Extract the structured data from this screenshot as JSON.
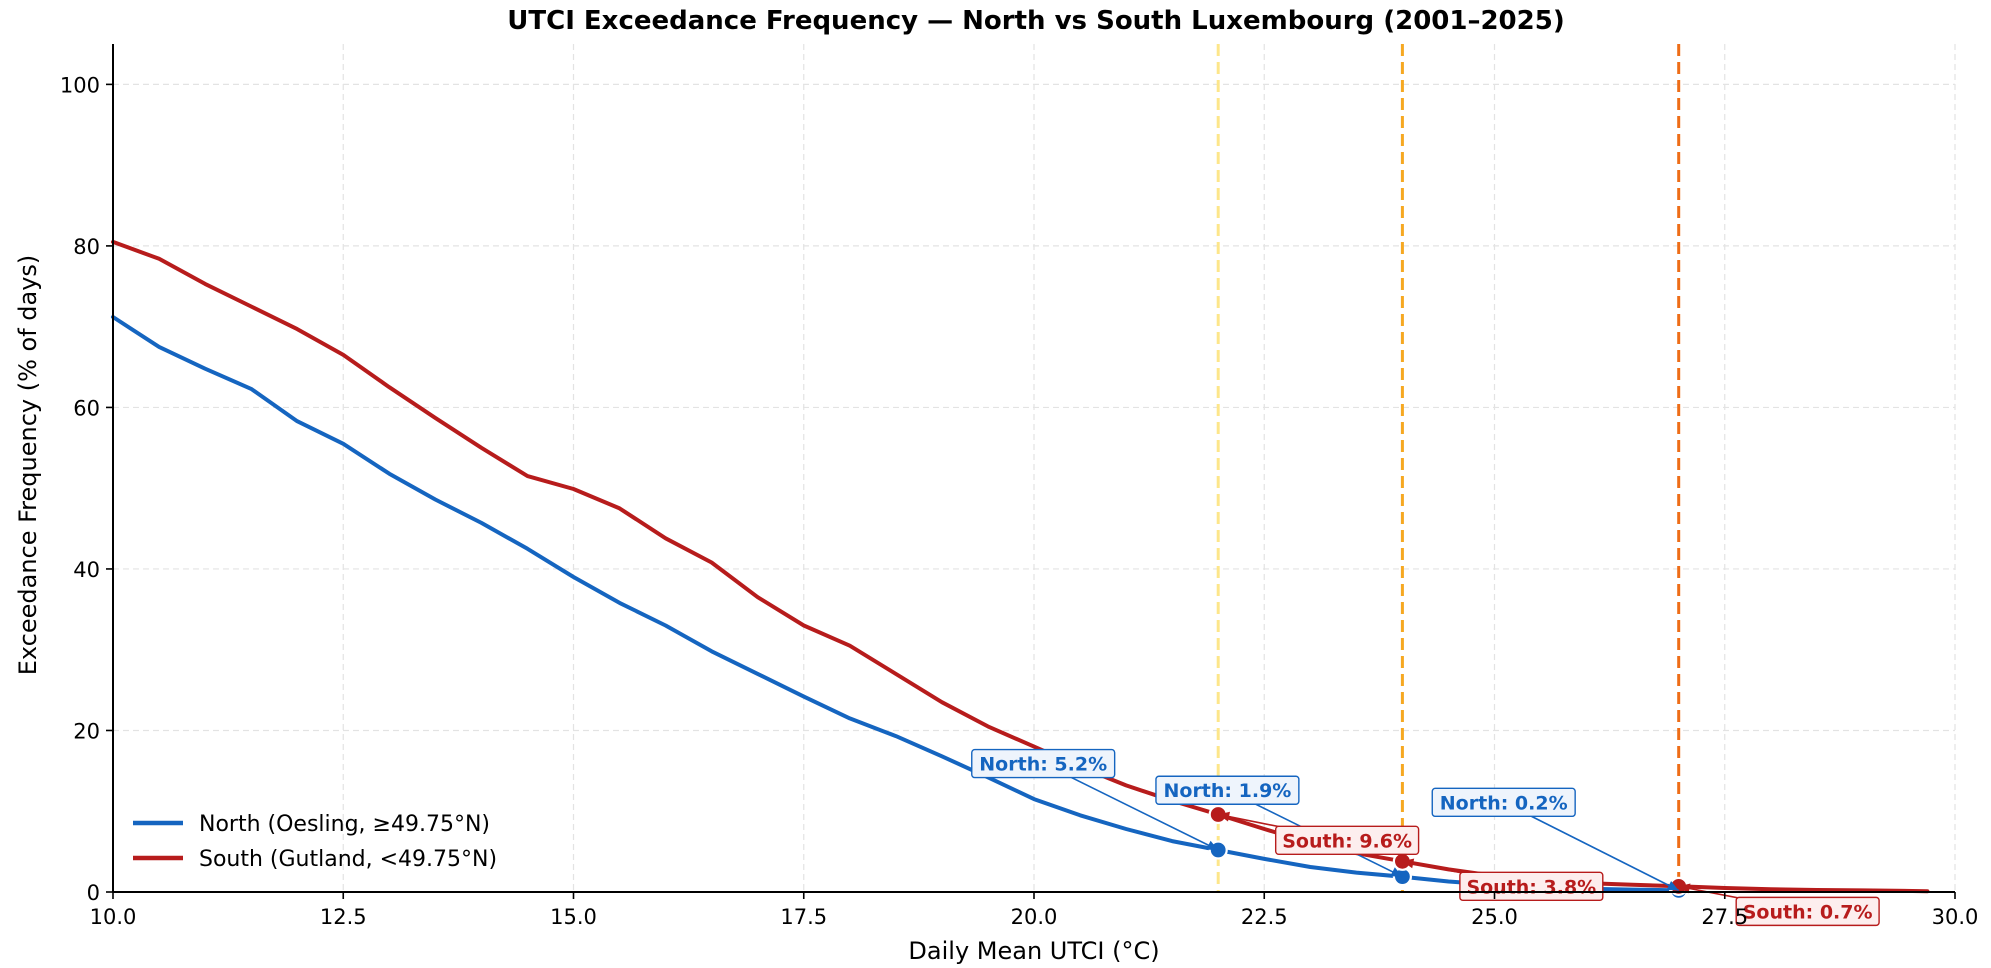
{
  "chart_data": {
    "type": "line",
    "title": "UTCI Exceedance Frequency — North vs South Luxembourg (2001–2025)",
    "xlabel": "Daily Mean UTCI (°C)",
    "ylabel": "Exceedance Frequency (% of days)",
    "xlim": [
      10.0,
      30.0
    ],
    "ylim": [
      0,
      105
    ],
    "x_ticks": [
      "10.0",
      "12.5",
      "15.0",
      "17.5",
      "20.0",
      "22.5",
      "25.0",
      "27.5",
      "30.0"
    ],
    "y_ticks": [
      "0",
      "20",
      "40",
      "60",
      "80",
      "100"
    ],
    "grid": true,
    "legend_position": "lower-left",
    "series": [
      {
        "name": "North (Oesling, ≥49.75°N)",
        "color": "#1565c0",
        "x": [
          10.0,
          10.5,
          11.0,
          11.5,
          12.0,
          12.5,
          13.0,
          13.5,
          14.0,
          14.5,
          15.0,
          15.5,
          16.0,
          16.5,
          17.0,
          17.5,
          18.0,
          18.5,
          19.0,
          19.5,
          20.0,
          20.5,
          21.0,
          21.5,
          22.0,
          22.5,
          23.0,
          23.5,
          24.0,
          24.5,
          25.0,
          25.5,
          26.0,
          26.5,
          27.0
        ],
        "y": [
          71.2,
          67.5,
          64.8,
          62.3,
          58.3,
          55.5,
          51.8,
          48.6,
          45.7,
          42.5,
          39.0,
          35.8,
          33.0,
          29.8,
          27.0,
          24.2,
          21.5,
          19.3,
          16.8,
          14.2,
          11.5,
          9.5,
          7.8,
          6.3,
          5.2,
          4.1,
          3.1,
          2.4,
          1.9,
          1.3,
          0.9,
          0.6,
          0.4,
          0.3,
          0.2
        ]
      },
      {
        "name": "South (Gutland, <49.75°N)",
        "color": "#b71c1c",
        "x": [
          10.0,
          10.5,
          11.0,
          11.5,
          12.0,
          12.5,
          13.0,
          13.5,
          14.0,
          14.5,
          15.0,
          15.5,
          16.0,
          16.5,
          17.0,
          17.5,
          18.0,
          18.5,
          19.0,
          19.5,
          20.0,
          20.5,
          21.0,
          21.5,
          22.0,
          22.5,
          23.0,
          23.5,
          24.0,
          24.5,
          25.0,
          25.5,
          26.0,
          26.5,
          27.0,
          27.5,
          28.0,
          28.5,
          29.0,
          29.7
        ],
        "y": [
          80.5,
          78.4,
          75.3,
          72.5,
          69.7,
          66.5,
          62.5,
          58.7,
          55.0,
          51.5,
          49.9,
          47.5,
          43.8,
          40.8,
          36.5,
          33.0,
          30.5,
          27.0,
          23.5,
          20.5,
          18.0,
          15.5,
          13.2,
          11.3,
          9.6,
          7.8,
          6.1,
          4.8,
          3.8,
          2.8,
          2.0,
          1.5,
          1.1,
          0.9,
          0.7,
          0.5,
          0.35,
          0.25,
          0.2,
          0.1
        ]
      }
    ],
    "thresholds": [
      {
        "x": 22.0,
        "color": "#fde68a"
      },
      {
        "x": 24.0,
        "color": "#f6a821"
      },
      {
        "x": 27.0,
        "color": "#ee6d17"
      }
    ],
    "markers": [
      {
        "series": "North",
        "x": 22.0,
        "y": 5.2,
        "color": "#1565c0"
      },
      {
        "series": "North",
        "x": 24.0,
        "y": 1.9,
        "color": "#1565c0"
      },
      {
        "series": "North",
        "x": 27.0,
        "y": 0.2,
        "color": "#1565c0"
      },
      {
        "series": "South",
        "x": 22.0,
        "y": 9.6,
        "color": "#b71c1c"
      },
      {
        "series": "South",
        "x": 24.0,
        "y": 3.8,
        "color": "#b71c1c"
      },
      {
        "series": "South",
        "x": 27.0,
        "y": 0.7,
        "color": "#b71c1c"
      }
    ],
    "annotations": [
      {
        "text": "North: 5.2%",
        "color": "#1565c0",
        "fill": "#eef4fc",
        "target_x": 22.0,
        "target_y": 5.2,
        "label_x": 20.1,
        "label_y": 15.9
      },
      {
        "text": "North: 1.9%",
        "color": "#1565c0",
        "fill": "#eef4fc",
        "target_x": 24.0,
        "target_y": 1.9,
        "label_x": 22.1,
        "label_y": 12.6
      },
      {
        "text": "North: 0.2%",
        "color": "#1565c0",
        "fill": "#eef4fc",
        "target_x": 27.0,
        "target_y": 0.2,
        "label_x": 25.1,
        "label_y": 11.1
      },
      {
        "text": "South: 9.6%",
        "color": "#b71c1c",
        "fill": "#fdeeee",
        "target_x": 22.0,
        "target_y": 9.6,
        "label_x": 23.4,
        "label_y": 6.4
      },
      {
        "text": "South: 3.8%",
        "color": "#b71c1c",
        "fill": "#fdeeee",
        "target_x": 24.0,
        "target_y": 3.8,
        "label_x": 25.4,
        "label_y": 0.7
      },
      {
        "text": "South: 0.7%",
        "color": "#b71c1c",
        "fill": "#fdeeee",
        "target_x": 27.0,
        "target_y": 0.7,
        "label_x": 28.4,
        "label_y": -2.4
      }
    ]
  }
}
